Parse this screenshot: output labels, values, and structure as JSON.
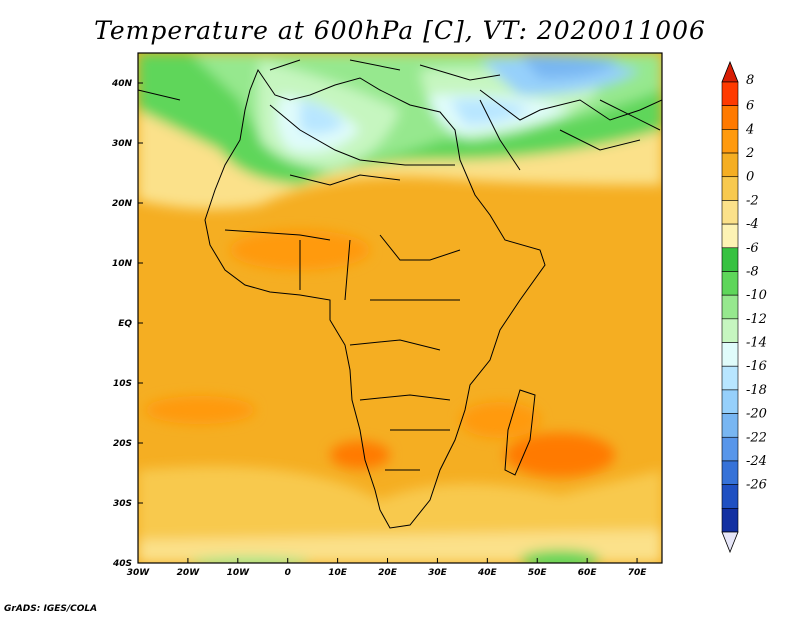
{
  "title": "Temperature at 600hPa [C], VT: 2020011006",
  "credit": "GrADS: IGES/COLA",
  "map": {
    "lon_range": [
      -30,
      75
    ],
    "lat_range": [
      -40,
      45
    ],
    "lat_ticks": [
      "40N",
      "30N",
      "20N",
      "10N",
      "EQ",
      "10S",
      "20S",
      "30S",
      "40S"
    ],
    "lon_ticks": [
      "30W",
      "20W",
      "10W",
      "0",
      "10E",
      "20E",
      "30E",
      "40E",
      "50E",
      "60E",
      "70E"
    ]
  },
  "colorbar": {
    "labels": [
      "8",
      "6",
      "4",
      "2",
      "0",
      "-2",
      "-4",
      "-6",
      "-8",
      "-10",
      "-12",
      "-14",
      "-16",
      "-18",
      "-20",
      "-22",
      "-24",
      "-26"
    ],
    "colors": [
      "#ff3a00",
      "#ff7a00",
      "#ff9a0e",
      "#f5ae22",
      "#f8c94e",
      "#fbe18a",
      "#fdf3b4",
      "#36c241",
      "#5ed65a",
      "#96e88e",
      "#c6f6c0",
      "#e0fcfb",
      "#b8e6ff",
      "#96d0fb",
      "#78b6f2",
      "#5896ea",
      "#3672d8",
      "#1f50c2",
      "#1230a2"
    ],
    "top_color": "#d81e05",
    "bottom_color": "#1a1a72",
    "top_arrow_color": "#d81e05",
    "bottom_arrow_color": "#e6e6f8"
  }
}
